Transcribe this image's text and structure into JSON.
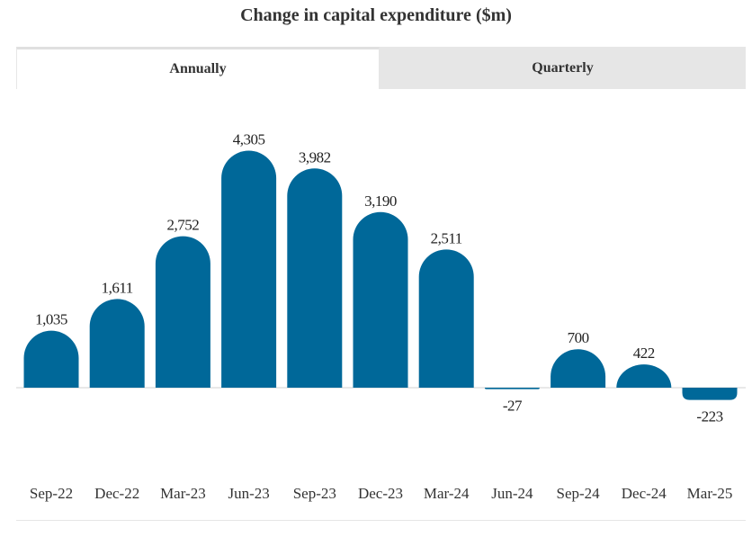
{
  "chart_data": {
    "type": "bar",
    "title": "Change in capital expenditure ($m)",
    "tabs": [
      "Annually",
      "Quarterly"
    ],
    "active_tab": "Annually",
    "categories": [
      "Sep-22",
      "Dec-22",
      "Mar-23",
      "Jun-23",
      "Sep-23",
      "Dec-23",
      "Mar-24",
      "Jun-24",
      "Sep-24",
      "Dec-24",
      "Mar-25"
    ],
    "values": [
      1035,
      1611,
      2752,
      4305,
      3982,
      3190,
      2511,
      -27,
      700,
      422,
      -223
    ],
    "value_labels": [
      "1,035",
      "1,611",
      "2,752",
      "4,305",
      "3,982",
      "3,190",
      "2,511",
      "-27",
      "700",
      "422",
      "-223"
    ],
    "xlabel": "",
    "ylabel": "",
    "bar_color": "#006899",
    "grid": false,
    "legend": "none"
  }
}
